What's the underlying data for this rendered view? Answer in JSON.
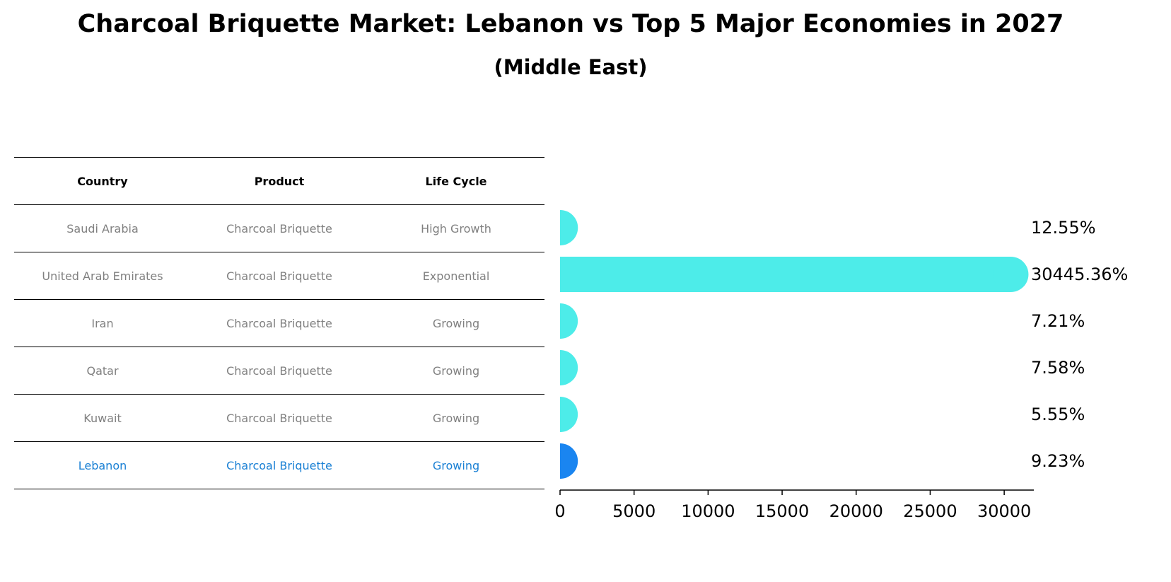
{
  "title": "Charcoal Briquette Market: Lebanon vs Top 5 Major Economies in 2027",
  "subtitle": "(Middle East)",
  "table": {
    "headers": [
      "Country",
      "Product",
      "Life Cycle"
    ],
    "rows": [
      [
        "Saudi Arabia",
        "Charcoal Briquette",
        "High Growth"
      ],
      [
        "United Arab Emirates",
        "Charcoal Briquette",
        "Exponential"
      ],
      [
        "Iran",
        "Charcoal Briquette",
        "Growing"
      ],
      [
        "Qatar",
        "Charcoal Briquette",
        "Growing"
      ],
      [
        "Kuwait",
        "Charcoal Briquette",
        "Growing"
      ],
      [
        "Lebanon",
        "Charcoal Briquette",
        "Growing"
      ]
    ],
    "highlight_row": 5
  },
  "chart_data": {
    "type": "bar",
    "orientation": "horizontal",
    "categories": [
      "Saudi Arabia",
      "United Arab Emirates",
      "Iran",
      "Qatar",
      "Kuwait",
      "Lebanon"
    ],
    "values": [
      12.55,
      30445.36,
      7.21,
      7.58,
      5.55,
      9.23
    ],
    "labels": [
      "12.55%",
      "30445.36%",
      "7.21%",
      "7.58%",
      "5.55%",
      "9.23%"
    ],
    "xlim": [
      0,
      32000
    ],
    "xticks": [
      0,
      5000,
      10000,
      15000,
      20000,
      25000,
      30000
    ],
    "grid": false,
    "colors": [
      "#4dece9",
      "#4dece9",
      "#4dece9",
      "#4dece9",
      "#4dece9",
      "#1a85f0"
    ],
    "label_color": "#000000"
  }
}
